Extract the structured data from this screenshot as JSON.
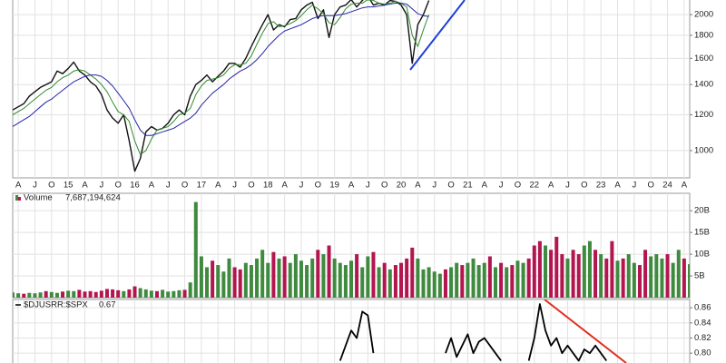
{
  "chart_data": [
    {
      "type": "line",
      "log_scale": true,
      "grid": true,
      "xlim": [
        "2014-03",
        "2024-05"
      ],
      "ylim": [
        870,
        2155
      ],
      "yticks": [
        1000,
        1200,
        1400,
        1600,
        1800,
        2000
      ],
      "xticks": [
        {
          "value": "2014-04",
          "label": "A"
        },
        {
          "value": "2014-07",
          "label": "J"
        },
        {
          "value": "2014-10",
          "label": "O"
        },
        {
          "value": "2015-01",
          "label": "15"
        },
        {
          "value": "2015-04",
          "label": "A"
        },
        {
          "value": "2015-07",
          "label": "J"
        },
        {
          "value": "2015-10",
          "label": "O"
        },
        {
          "value": "2016-01",
          "label": "16"
        },
        {
          "value": "2016-04",
          "label": "A"
        },
        {
          "value": "2016-07",
          "label": "J"
        },
        {
          "value": "2016-10",
          "label": "O"
        },
        {
          "value": "2017-01",
          "label": "17"
        },
        {
          "value": "2017-04",
          "label": "A"
        },
        {
          "value": "2017-07",
          "label": "J"
        },
        {
          "value": "2017-10",
          "label": "O"
        },
        {
          "value": "2018-01",
          "label": "18"
        },
        {
          "value": "2018-04",
          "label": "A"
        },
        {
          "value": "2018-07",
          "label": "J"
        },
        {
          "value": "2018-10",
          "label": "O"
        },
        {
          "value": "2019-01",
          "label": "19"
        },
        {
          "value": "2019-04",
          "label": "A"
        },
        {
          "value": "2019-07",
          "label": "J"
        },
        {
          "value": "2019-10",
          "label": "O"
        },
        {
          "value": "2020-01",
          "label": "20"
        },
        {
          "value": "2020-04",
          "label": "A"
        },
        {
          "value": "2020-07",
          "label": "J"
        },
        {
          "value": "2020-10",
          "label": "O"
        },
        {
          "value": "2021-01",
          "label": "21"
        },
        {
          "value": "2021-04",
          "label": "A"
        },
        {
          "value": "2021-07",
          "label": "J"
        },
        {
          "value": "2021-10",
          "label": "O"
        },
        {
          "value": "2022-01",
          "label": "22"
        },
        {
          "value": "2022-04",
          "label": "A"
        },
        {
          "value": "2022-07",
          "label": "J"
        },
        {
          "value": "2022-10",
          "label": "O"
        },
        {
          "value": "2023-01",
          "label": "23"
        },
        {
          "value": "2023-04",
          "label": "A"
        },
        {
          "value": "2023-07",
          "label": "J"
        },
        {
          "value": "2023-10",
          "label": "O"
        },
        {
          "value": "2024-01",
          "label": "24"
        },
        {
          "value": "2024-04",
          "label": "A"
        }
      ],
      "x": [
        "2014-03",
        "2014-04",
        "2014-05",
        "2014-06",
        "2014-07",
        "2014-08",
        "2014-09",
        "2014-10",
        "2014-11",
        "2014-12",
        "2015-01",
        "2015-02",
        "2015-03",
        "2015-04",
        "2015-05",
        "2015-06",
        "2015-07",
        "2015-08",
        "2015-09",
        "2015-10",
        "2015-11",
        "2015-12",
        "2016-01",
        "2016-02",
        "2016-03",
        "2016-04",
        "2016-05",
        "2016-06",
        "2016-07",
        "2016-08",
        "2016-09",
        "2016-10",
        "2016-11",
        "2016-12",
        "2017-01",
        "2017-02",
        "2017-03",
        "2017-04",
        "2017-05",
        "2017-06",
        "2017-07",
        "2017-08",
        "2017-09",
        "2017-10",
        "2017-11",
        "2017-12",
        "2018-01",
        "2018-02",
        "2018-03",
        "2018-04",
        "2018-05",
        "2018-06",
        "2018-07",
        "2018-08",
        "2018-09",
        "2018-10",
        "2018-11",
        "2018-12",
        "2019-01",
        "2019-02",
        "2019-03",
        "2019-04",
        "2019-05",
        "2019-06",
        "2019-07",
        "2019-08",
        "2019-09",
        "2019-10",
        "2019-11",
        "2019-12",
        "2020-01",
        "2020-02",
        "2020-03",
        "2020-04",
        "2020-05",
        "2020-06"
      ],
      "series": [
        {
          "color": "#111111",
          "width": 1.4,
          "values": [
            1230,
            1250,
            1270,
            1320,
            1350,
            1380,
            1400,
            1420,
            1500,
            1480,
            1520,
            1570,
            1500,
            1470,
            1420,
            1390,
            1330,
            1230,
            1180,
            1150,
            1200,
            1050,
            900,
            960,
            1100,
            1130,
            1110,
            1120,
            1150,
            1200,
            1230,
            1200,
            1320,
            1400,
            1430,
            1470,
            1420,
            1460,
            1500,
            1560,
            1560,
            1530,
            1600,
            1700,
            1800,
            1900,
            2000,
            1850,
            1900,
            1880,
            1950,
            1960,
            2050,
            2100,
            2130,
            1960,
            2050,
            1780,
            2000,
            2080,
            2100,
            2160,
            2080,
            2150,
            2200,
            2100,
            2120,
            2100,
            2150,
            2140,
            2100,
            2000,
            1560,
            1900,
            2000,
            2150
          ]
        },
        {
          "color": "#2e8b2e",
          "width": 1,
          "values": [
            1200,
            1220,
            1240,
            1270,
            1300,
            1330,
            1360,
            1380,
            1420,
            1450,
            1470,
            1500,
            1510,
            1500,
            1470,
            1440,
            1400,
            1350,
            1280,
            1220,
            1200,
            1160,
            1050,
            980,
            1000,
            1060,
            1110,
            1120,
            1130,
            1160,
            1200,
            1210,
            1240,
            1330,
            1390,
            1430,
            1440,
            1450,
            1470,
            1520,
            1550,
            1550,
            1560,
            1620,
            1720,
            1820,
            1910,
            1930,
            1880,
            1890,
            1910,
            1940,
            1990,
            2050,
            2100,
            2060,
            2010,
            1920,
            1900,
            1970,
            2060,
            2110,
            2120,
            2120,
            2160,
            2150,
            2120,
            2110,
            2120,
            2140,
            2120,
            2080,
            1800,
            1700,
            1850,
            2000
          ]
        },
        {
          "color": "#2424a8",
          "width": 1,
          "values": [
            1130,
            1150,
            1170,
            1190,
            1220,
            1250,
            1280,
            1300,
            1330,
            1360,
            1390,
            1420,
            1440,
            1460,
            1470,
            1470,
            1460,
            1430,
            1390,
            1340,
            1290,
            1240,
            1170,
            1110,
            1080,
            1080,
            1090,
            1100,
            1110,
            1120,
            1140,
            1160,
            1180,
            1210,
            1260,
            1300,
            1340,
            1370,
            1400,
            1440,
            1470,
            1500,
            1520,
            1550,
            1590,
            1640,
            1700,
            1750,
            1800,
            1840,
            1860,
            1880,
            1900,
            1930,
            1960,
            1980,
            1990,
            1990,
            1990,
            2000,
            2010,
            2030,
            2050,
            2070,
            2080,
            2080,
            2090,
            2100,
            2110,
            2120,
            2120,
            2110,
            2060,
            2010,
            1990,
            1980
          ]
        }
      ]
    },
    {
      "type": "bar",
      "grid": true,
      "legend_name": "Volume",
      "latest_label": "7,687,194,624",
      "up_color": "#3f8a3f",
      "down_color": "#b3164f",
      "xlim": [
        "2014-03",
        "2024-05"
      ],
      "ylim": [
        0,
        24000000000
      ],
      "yticks": [
        {
          "value": 5000000000,
          "label": "5B"
        },
        {
          "value": 10000000000,
          "label": "10B"
        },
        {
          "value": 15000000000,
          "label": "15B"
        },
        {
          "value": 20000000000,
          "label": "20B"
        }
      ],
      "x": [
        "2014-03",
        "2014-04",
        "2014-05",
        "2014-06",
        "2014-07",
        "2014-08",
        "2014-09",
        "2014-10",
        "2014-11",
        "2014-12",
        "2015-01",
        "2015-02",
        "2015-03",
        "2015-04",
        "2015-05",
        "2015-06",
        "2015-07",
        "2015-08",
        "2015-09",
        "2015-10",
        "2015-11",
        "2015-12",
        "2016-01",
        "2016-02",
        "2016-03",
        "2016-04",
        "2016-05",
        "2016-06",
        "2016-07",
        "2016-08",
        "2016-09",
        "2016-10",
        "2016-11",
        "2016-12",
        "2017-01",
        "2017-02",
        "2017-03",
        "2017-04",
        "2017-05",
        "2017-06",
        "2017-07",
        "2017-08",
        "2017-09",
        "2017-10",
        "2017-11",
        "2017-12",
        "2018-01",
        "2018-02",
        "2018-03",
        "2018-04",
        "2018-05",
        "2018-06",
        "2018-07",
        "2018-08",
        "2018-09",
        "2018-10",
        "2018-11",
        "2018-12",
        "2019-01",
        "2019-02",
        "2019-03",
        "2019-04",
        "2019-05",
        "2019-06",
        "2019-07",
        "2019-08",
        "2019-09",
        "2019-10",
        "2019-11",
        "2019-12",
        "2020-01",
        "2020-02",
        "2020-03",
        "2020-04",
        "2020-05",
        "2020-06",
        "2020-07",
        "2020-08",
        "2020-09",
        "2020-10",
        "2020-11",
        "2020-12",
        "2021-01",
        "2021-02",
        "2021-03",
        "2021-04",
        "2021-05",
        "2021-06",
        "2021-07",
        "2021-08",
        "2021-09",
        "2021-10",
        "2021-11",
        "2021-12",
        "2022-01",
        "2022-02",
        "2022-03",
        "2022-04",
        "2022-05",
        "2022-06",
        "2022-07",
        "2022-08",
        "2022-09",
        "2022-10",
        "2022-11",
        "2022-12",
        "2023-01",
        "2023-02",
        "2023-03",
        "2023-04",
        "2023-05",
        "2023-06",
        "2023-07",
        "2023-08",
        "2023-09",
        "2023-10",
        "2023-11",
        "2023-12",
        "2024-01",
        "2024-02",
        "2024-03",
        "2024-04",
        "2024-05"
      ],
      "values": [
        1200000000.0,
        1000000000.0,
        900000000.0,
        1100000000.0,
        1000000000.0,
        1200000000.0,
        1500000000.0,
        1300000000.0,
        1100000000.0,
        1400000000.0,
        1600000000.0,
        1500000000.0,
        1800000000.0,
        1400000000.0,
        1500000000.0,
        1300000000.0,
        1600000000.0,
        2000000000.0,
        1900000000.0,
        1700000000.0,
        1500000000.0,
        1900000000.0,
        2600000000.0,
        2200000000.0,
        1900000000.0,
        1600000000.0,
        1500000000.0,
        1800000000.0,
        1400000000.0,
        1500000000.0,
        1700000000.0,
        1800000000.0,
        3500000000.0,
        22000000000.0,
        9500000000.0,
        7000000000.0,
        8500000000.0,
        7500000000.0,
        6000000000.0,
        9000000000.0,
        7000000000.0,
        6500000000.0,
        8000000000.0,
        7500000000.0,
        9000000000.0,
        11000000000.0,
        8000000000.0,
        10500000000.0,
        9000000000.0,
        9500000000.0,
        8000000000.0,
        10000000000.0,
        8500000000.0,
        7500000000.0,
        9000000000.0,
        11000000000.0,
        10000000000.0,
        12000000000.0,
        9000000000.0,
        8000000000.0,
        7500000000.0,
        8500000000.0,
        10000000000.0,
        7000000000.0,
        9500000000.0,
        10500000000.0,
        7000000000.0,
        8000000000.0,
        6500000000.0,
        7500000000.0,
        8000000000.0,
        9000000000.0,
        11500000000.0,
        9000000000.0,
        6500000000.0,
        7000000000.0,
        6000000000.0,
        5500000000.0,
        6500000000.0,
        7000000000.0,
        8000000000.0,
        7500000000.0,
        8000000000.0,
        9000000000.0,
        7500000000.0,
        8000000000.0,
        9500000000.0,
        7000000000.0,
        8000000000.0,
        7000000000.0,
        7500000000.0,
        8500000000.0,
        8000000000.0,
        9000000000.0,
        12000000000.0,
        13000000000.0,
        12000000000.0,
        11000000000.0,
        14000000000.0,
        10000000000.0,
        9000000000.0,
        11000000000.0,
        10000000000.0,
        12000000000.0,
        13000000000.0,
        11000000000.0,
        10000000000.0,
        9000000000.0,
        13000000000.0,
        8500000000.0,
        9000000000.0,
        10000000000.0,
        8000000000.0,
        7500000000.0,
        11000000000.0,
        9500000000.0,
        10000000000.0,
        9000000000.0,
        10000000000.0,
        8000000000.0,
        11000000000.0,
        9000000000.0,
        7700000000.0
      ],
      "up": [
        1,
        1,
        0,
        1,
        1,
        1,
        0,
        1,
        1,
        0,
        1,
        1,
        0,
        0,
        0,
        0,
        0,
        0,
        0,
        0,
        1,
        0,
        0,
        1,
        1,
        1,
        0,
        1,
        1,
        1,
        1,
        0,
        1,
        1,
        1,
        1,
        0,
        1,
        1,
        1,
        0,
        0,
        1,
        1,
        1,
        1,
        1,
        0,
        1,
        0,
        1,
        1,
        1,
        1,
        1,
        0,
        1,
        0,
        1,
        1,
        1,
        1,
        0,
        1,
        1,
        0,
        1,
        0,
        1,
        0,
        0,
        0,
        0,
        1,
        1,
        1,
        1,
        1,
        0,
        1,
        1,
        0,
        1,
        1,
        1,
        1,
        0,
        1,
        0,
        1,
        0,
        1,
        1,
        0,
        0,
        0,
        1,
        0,
        0,
        0,
        1,
        0,
        0,
        1,
        1,
        0,
        1,
        0,
        0,
        1,
        0,
        1,
        1,
        0,
        0,
        1,
        1,
        1,
        0,
        1,
        1,
        0,
        1
      ]
    },
    {
      "type": "line",
      "grid": true,
      "legend_name": "$DJUSRR:$SPX",
      "latest": 0.67,
      "xlim": [
        "2014-03",
        "2024-05"
      ],
      "ylim": [
        0.787,
        0.871
      ],
      "yticks": [
        {
          "value": 0.8,
          "label": "0.80"
        },
        0.82,
        0.84,
        0.86
      ],
      "x": [
        "2019-02",
        "2019-03",
        "2019-04",
        "2019-05",
        "2019-06",
        "2019-07",
        "2019-08",
        "2019-09",
        "2019-10",
        "2019-11",
        "2019-12",
        "2020-01",
        "2020-02",
        "2020-03",
        "2020-04",
        "2020-05",
        "2020-06",
        "2020-07",
        "2020-08",
        "2020-09",
        "2020-10",
        "2020-11",
        "2020-12",
        "2021-01",
        "2021-02",
        "2021-03",
        "2021-04",
        "2021-05",
        "2021-06",
        "2021-07",
        "2021-08",
        "2021-09",
        "2021-10",
        "2021-11",
        "2021-12",
        "2022-01",
        "2022-02",
        "2022-03",
        "2022-04",
        "2022-05",
        "2022-06",
        "2022-07",
        "2022-08",
        "2022-09",
        "2022-10",
        "2022-11",
        "2022-12",
        "2023-01",
        "2023-02"
      ],
      "series": [
        {
          "color": "#000000",
          "width": 1.8,
          "values": [
            0.79,
            0.81,
            0.83,
            0.82,
            0.855,
            0.85,
            0.8,
            null,
            null,
            null,
            null,
            null,
            null,
            null,
            null,
            null,
            null,
            null,
            null,
            0.8,
            0.82,
            0.795,
            0.81,
            0.825,
            0.8,
            0.815,
            0.82,
            0.81,
            0.8,
            0.79,
            null,
            null,
            null,
            null,
            0.79,
            0.82,
            0.865,
            0.83,
            0.81,
            0.82,
            0.8,
            0.81,
            0.8,
            0.79,
            0.805,
            0.8,
            0.81,
            0.8,
            0.79
          ]
        }
      ]
    }
  ]
}
